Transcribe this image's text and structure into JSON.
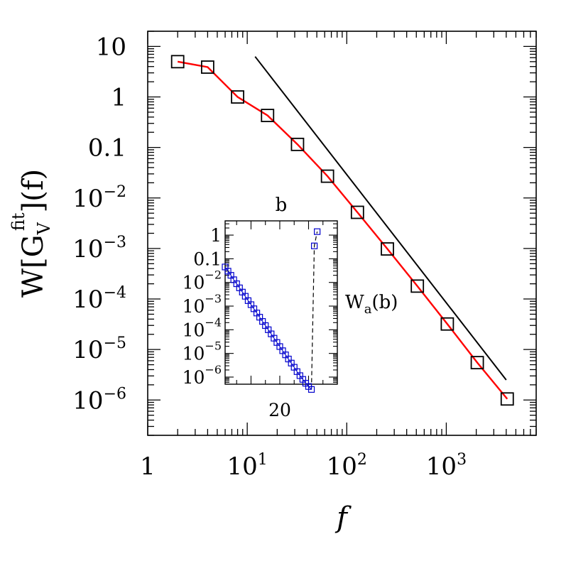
{
  "chart_data": [
    {
      "type": "line",
      "xscale": "log",
      "yscale": "log",
      "xlim": [
        1,
        8000
      ],
      "ylim": [
        2e-07,
        20
      ],
      "xlabel": "f",
      "ylabel": {
        "base": "W[G",
        "sub": "V",
        "sup": "fit",
        "tail": "](f)"
      },
      "xticks": [
        {
          "value": 1,
          "base": "1",
          "exp": ""
        },
        {
          "value": 10,
          "base": "10",
          "exp": "1"
        },
        {
          "value": 100,
          "base": "10",
          "exp": "2"
        },
        {
          "value": 1000,
          "base": "10",
          "exp": "3"
        }
      ],
      "yticks": [
        {
          "value": 10,
          "base": "10",
          "exp": ""
        },
        {
          "value": 1,
          "base": "1",
          "exp": ""
        },
        {
          "value": 0.1,
          "base": "0.1",
          "exp": ""
        },
        {
          "value": 0.01,
          "base": "10",
          "exp": "−2"
        },
        {
          "value": 0.001,
          "base": "10",
          "exp": "−3"
        },
        {
          "value": 0.0001,
          "base": "10",
          "exp": "−4"
        },
        {
          "value": 1e-05,
          "base": "10",
          "exp": "−5"
        },
        {
          "value": 1e-06,
          "base": "10",
          "exp": "−6"
        }
      ],
      "series": [
        {
          "style": "open-square markers",
          "color": "#000000",
          "x": [
            2,
            4,
            8,
            16,
            32,
            64,
            128,
            256,
            512,
            1024,
            2048,
            4096
          ],
          "y": [
            5.0,
            3.9,
            1.0,
            0.43,
            0.115,
            0.027,
            0.0052,
            0.00098,
            0.00018,
            3.2e-05,
            5.5e-06,
            1.05e-06
          ]
        },
        {
          "style": "solid line",
          "color": "#ff0000",
          "x": [
            2,
            4,
            8,
            16,
            32,
            64,
            128,
            256,
            512,
            1024,
            2048,
            4096
          ],
          "y": [
            5.0,
            3.9,
            1.0,
            0.43,
            0.115,
            0.027,
            0.0052,
            0.00098,
            0.00018,
            3.2e-05,
            5.5e-06,
            1.05e-06
          ]
        },
        {
          "style": "solid line",
          "color": "#000000",
          "x": [
            12,
            4000
          ],
          "y": [
            6.3,
            2.5e-06
          ]
        }
      ]
    },
    {
      "type": "scatter",
      "inset": true,
      "yscale": "log",
      "xlim": [
        1,
        40
      ],
      "ylim": [
        5e-07,
        4
      ],
      "xlabel": "b",
      "ylabel": {
        "base": "W",
        "sub": "a",
        "tail": "(b)"
      },
      "xticks": [
        {
          "value": 20,
          "label": "20"
        }
      ],
      "yticks": [
        {
          "value": 1,
          "base": "1",
          "exp": ""
        },
        {
          "value": 0.1,
          "base": "0.1",
          "exp": ""
        },
        {
          "value": 0.01,
          "base": "10",
          "exp": "−2"
        },
        {
          "value": 0.001,
          "base": "10",
          "exp": "−3"
        },
        {
          "value": 0.0001,
          "base": "10",
          "exp": "−4"
        },
        {
          "value": 1e-05,
          "base": "10",
          "exp": "−5"
        },
        {
          "value": 1e-06,
          "base": "10",
          "exp": "−6"
        }
      ],
      "series": [
        {
          "style": "open-square markers with dashed line",
          "color": "#0000cc",
          "x": [
            1,
            2,
            3,
            4,
            5,
            6,
            7,
            8,
            9,
            10,
            11,
            12,
            13,
            14,
            15,
            16,
            17,
            18,
            19,
            20,
            21,
            22,
            23,
            24,
            25,
            26,
            27,
            28,
            29,
            30,
            31,
            32,
            33
          ],
          "y": [
            0.045,
            0.03,
            0.02,
            0.013,
            0.0088,
            0.0059,
            0.0039,
            0.0026,
            0.0017,
            0.00115,
            0.00077,
            0.00051,
            0.00034,
            0.000225,
            0.00015,
            0.0001,
            6.7e-05,
            4.4e-05,
            2.9e-05,
            1.95e-05,
            1.3e-05,
            8.7e-06,
            5.8e-06,
            3.9e-06,
            2.6e-06,
            1.7e-06,
            1.15e-06,
            8e-07,
            5.5e-07,
            4e-07,
            3e-07,
            0.35,
            1.4
          ]
        }
      ]
    }
  ]
}
